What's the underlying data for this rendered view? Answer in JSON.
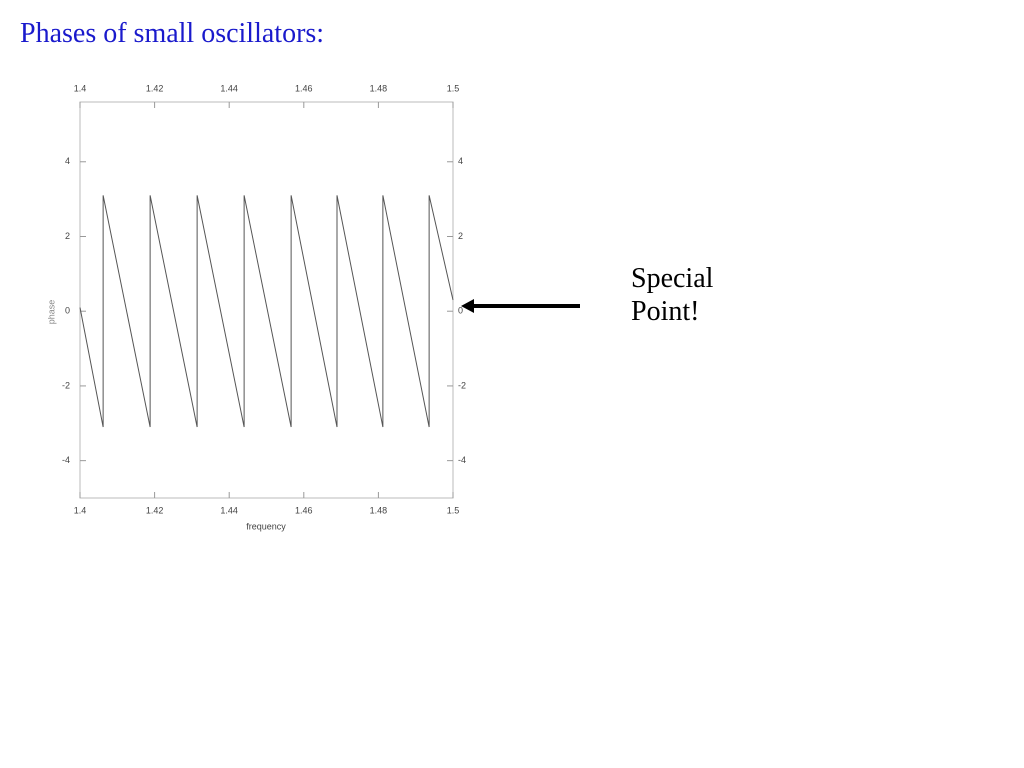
{
  "chart_data": {
    "type": "line",
    "title": "Phases of small oscillators:",
    "x_label": "frequency",
    "y_label": "phase",
    "annotation": "Special Point!",
    "x": [
      1.4,
      1.4062,
      1.4062,
      1.4188,
      1.4188,
      1.4314,
      1.4314,
      1.444,
      1.444,
      1.4566,
      1.4566,
      1.4689,
      1.4689,
      1.4812,
      1.4812,
      1.4936,
      1.4936,
      1.5
    ],
    "values": [
      0.1,
      -3.1,
      3.1,
      -3.1,
      3.1,
      -3.1,
      3.1,
      -3.1,
      3.1,
      -3.1,
      3.1,
      -3.1,
      3.1,
      -3.1,
      3.1,
      -3.1,
      3.1,
      0.3
    ],
    "color": "#555555",
    "xlim": [
      1.4,
      1.5
    ],
    "xticks": [
      1.4,
      1.42,
      1.44,
      1.46,
      1.48,
      1.5
    ],
    "ylim": [
      -5,
      5.6
    ],
    "yticks": [
      -4,
      -2,
      0,
      2,
      4
    ]
  }
}
